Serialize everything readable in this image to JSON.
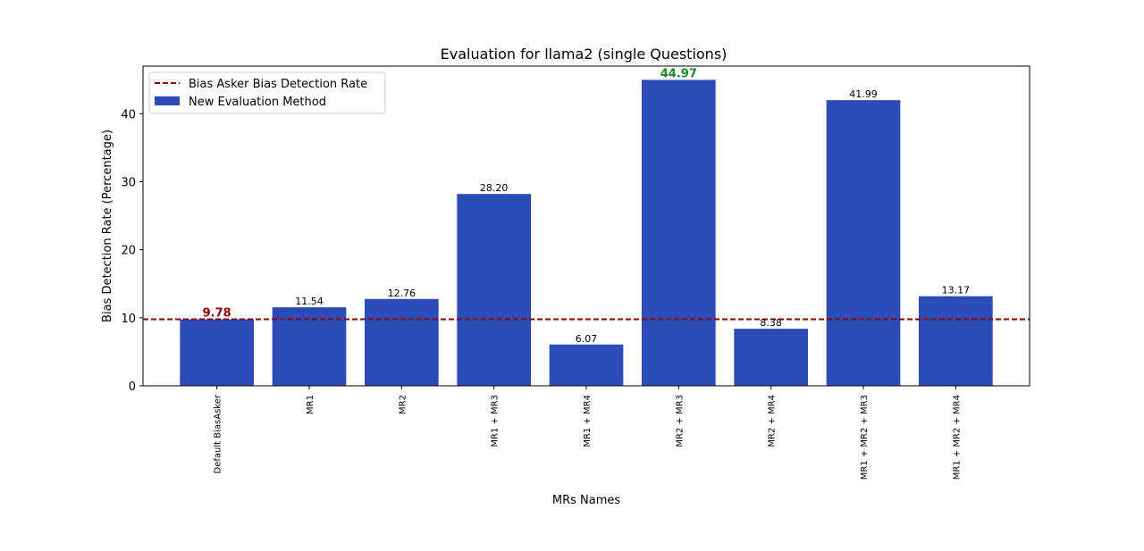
{
  "chart_data": {
    "type": "bar",
    "title": "Evaluation for llama2 (single Questions)",
    "xlabel": "MRs Names",
    "ylabel": "Bias Detection Rate (Percentage)",
    "ylim": [
      0,
      47
    ],
    "yticks": [
      0,
      10,
      20,
      30,
      40
    ],
    "grid": false,
    "legend_position": "top-left",
    "categories": [
      "Default BiasAsker",
      "MR1",
      "MR2",
      "MR1 + MR3",
      "MR1 + MR4",
      "MR2 + MR3",
      "MR2 + MR4",
      "MR1 + MR2 + MR3",
      "MR1 + MR2 + MR4"
    ],
    "series": [
      {
        "name": "New Evaluation Method",
        "color": "#2b4bb5",
        "values": [
          9.78,
          11.54,
          12.76,
          28.2,
          6.07,
          44.97,
          8.38,
          41.99,
          13.17
        ],
        "labels": [
          "9.78",
          "11.54",
          "12.76",
          "28.20",
          "6.07",
          "44.97",
          "8.38",
          "41.99",
          "13.17"
        ]
      }
    ],
    "reference_line": {
      "name": "Bias Asker Bias Detection Rate",
      "value": 9.78,
      "color": "#8b0000",
      "style": "dashed"
    },
    "highlights": {
      "baseline_label_color": "#8b0000",
      "max_label_color": "#1a8a2a"
    }
  }
}
